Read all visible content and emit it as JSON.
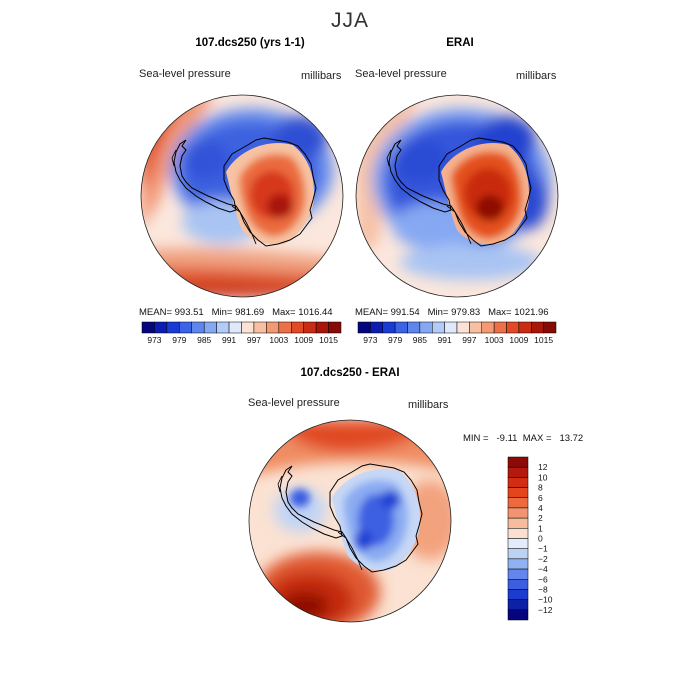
{
  "figure": {
    "season_title": "JJA",
    "colors": {
      "deep_blue": "#05067f",
      "blue": "#2447d9",
      "light_blue": "#a8c4f2",
      "white": "#f4f6fb",
      "peach": "#f6b598",
      "red": "#e4451c",
      "dark_red": "#8e0a06",
      "coast": "#000000"
    }
  },
  "panels": [
    {
      "title": "107.dcs250 (yrs 1-1)",
      "variable": "Sea-level pressure",
      "units": "millibars",
      "stats": {
        "mean_label": "MEAN=",
        "mean": "993.51",
        "min_label": "Min=",
        "min": "981.69",
        "max_label": "Max=",
        "max": "1016.44"
      }
    },
    {
      "title": "ERAI",
      "variable": "Sea-level pressure",
      "units": "millibars",
      "stats": {
        "mean_label": "MEAN=",
        "mean": "991.54",
        "min_label": "Min=",
        "min": "979.83",
        "max_label": "Max=",
        "max": "1021.96"
      }
    },
    {
      "title": "107.dcs250 - ERAI",
      "variable": "Sea-level pressure",
      "units": "millibars",
      "stats_text": "MIN =   -9.11  MAX =   13.72"
    }
  ],
  "chart_data": [
    {
      "type": "heatmap",
      "title": "107.dcs250 (yrs 1-1)",
      "projection": "south polar stereographic",
      "colorbar": {
        "orientation": "horizontal",
        "levels": [
          973,
          976,
          979,
          982,
          985,
          988,
          991,
          994,
          997,
          1000,
          1003,
          1006,
          1009,
          1012,
          1015
        ],
        "tick_labels": [
          "973",
          "979",
          "985",
          "991",
          "997",
          "1003",
          "1009",
          "1015"
        ],
        "colors": [
          "#05067f",
          "#0a1cb3",
          "#1a3ad6",
          "#3b63e6",
          "#5f86ee",
          "#86a8f3",
          "#b2cbf7",
          "#dfe9fb",
          "#fbe2d4",
          "#f8c0a3",
          "#f39a74",
          "#ec7048",
          "#e24a25",
          "#c92c10",
          "#a8160a",
          "#860a06"
        ]
      },
      "mean": 993.51,
      "min": 981.69,
      "max": 1016.44
    },
    {
      "type": "heatmap",
      "title": "ERAI",
      "projection": "south polar stereographic",
      "colorbar": {
        "orientation": "horizontal",
        "levels": [
          973,
          976,
          979,
          982,
          985,
          988,
          991,
          994,
          997,
          1000,
          1003,
          1006,
          1009,
          1012,
          1015
        ],
        "tick_labels": [
          "973",
          "979",
          "985",
          "991",
          "997",
          "1003",
          "1009",
          "1015"
        ],
        "colors": [
          "#05067f",
          "#0a1cb3",
          "#1a3ad6",
          "#3b63e6",
          "#5f86ee",
          "#86a8f3",
          "#b2cbf7",
          "#dfe9fb",
          "#fbe2d4",
          "#f8c0a3",
          "#f39a74",
          "#ec7048",
          "#e24a25",
          "#c92c10",
          "#a8160a",
          "#860a06"
        ]
      },
      "mean": 991.54,
      "min": 979.83,
      "max": 1021.96
    },
    {
      "type": "heatmap",
      "title": "107.dcs250 - ERAI",
      "projection": "south polar stereographic",
      "colorbar": {
        "orientation": "vertical",
        "levels": [
          -12,
          -10,
          -8,
          -6,
          -4,
          -2,
          -1,
          0,
          1,
          2,
          4,
          6,
          8,
          10,
          12
        ],
        "tick_labels": [
          "12",
          "10",
          "8",
          "6",
          "4",
          "2",
          "1",
          "0",
          "−1",
          "−2",
          "−4",
          "−6",
          "−8",
          "−10",
          "−12"
        ],
        "colors": [
          "#8e0a06",
          "#b3190c",
          "#d22c12",
          "#e4451c",
          "#ec6a3e",
          "#f39470",
          "#f7bb9d",
          "#fbe0d2",
          "#e3ecfb",
          "#bcd3f6",
          "#91b2f2",
          "#6286ec",
          "#3c5fe2",
          "#1c3bcf",
          "#0c21a5",
          "#05067f"
        ]
      },
      "min": -9.11,
      "max": 13.72
    }
  ]
}
